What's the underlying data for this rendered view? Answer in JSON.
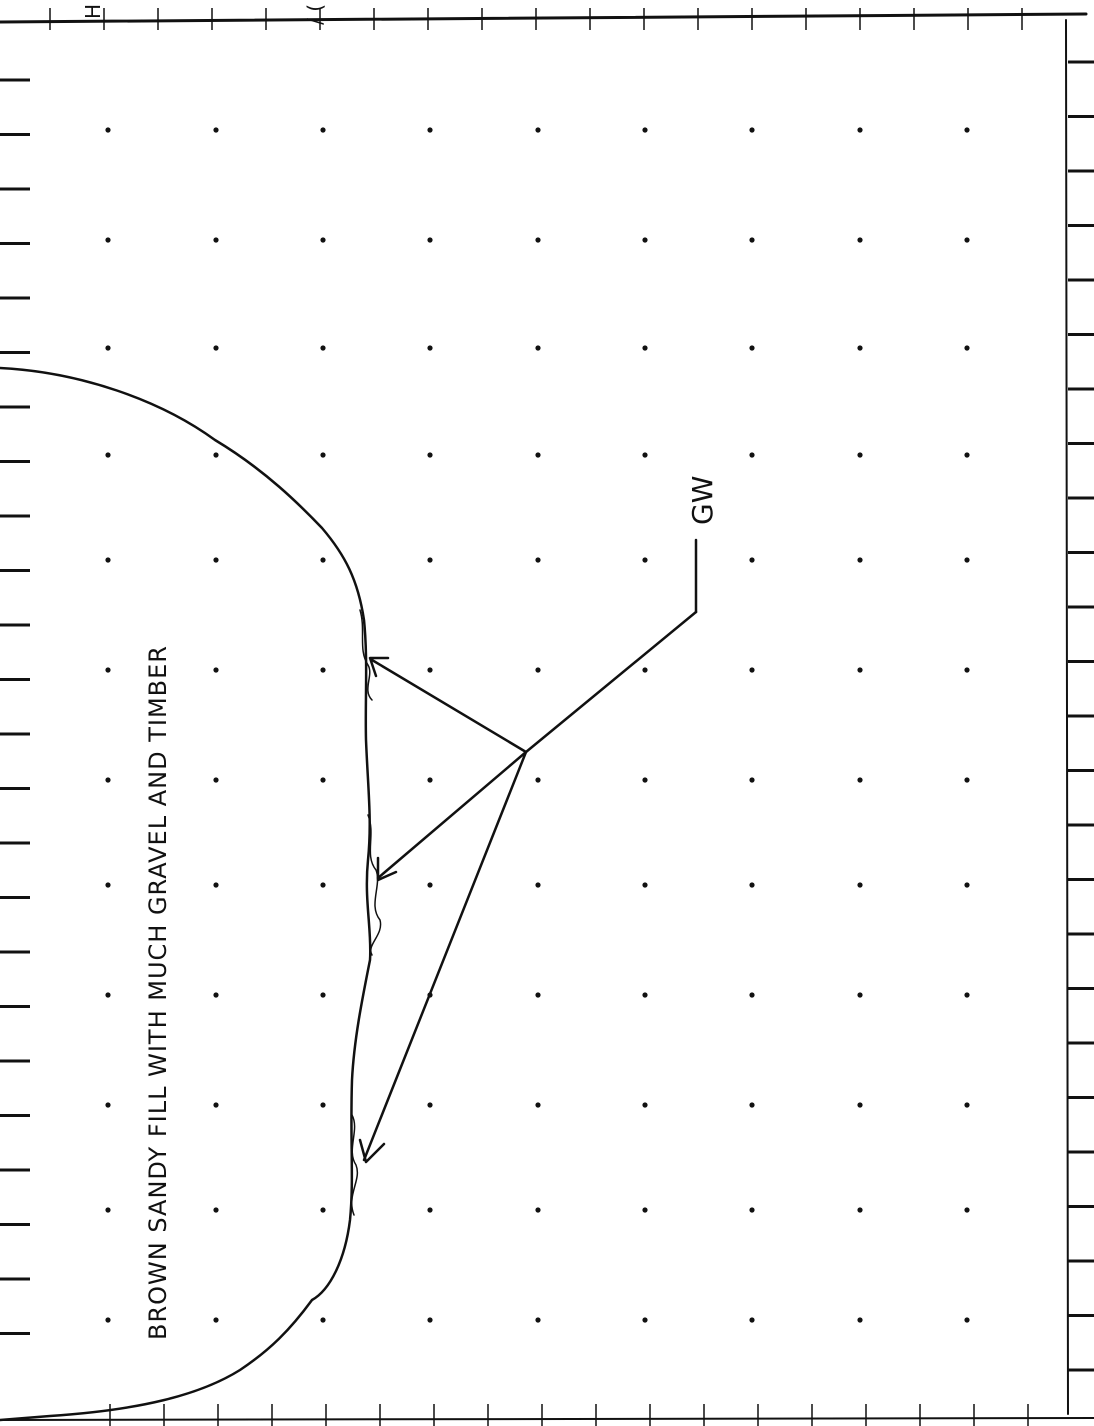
{
  "drawing": {
    "title_fragment_left": "H",
    "title_fragment_right": "/ (",
    "material_label": "BROWN SANDY FILL WITH MUCH GRAVEL AND TIMBER",
    "callout_label": "GW",
    "colors": {
      "ink": "#111111",
      "paper": "#ffffff"
    }
  }
}
